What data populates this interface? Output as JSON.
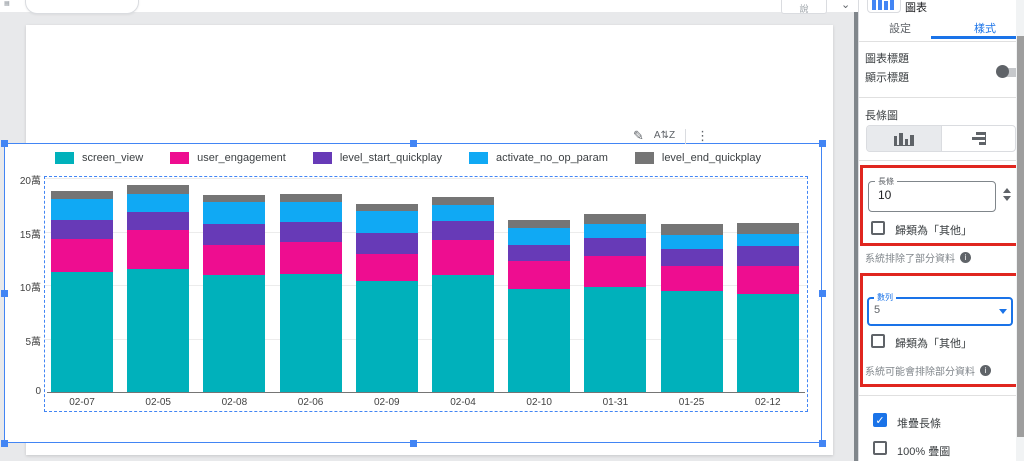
{
  "top_bar": {
    "partial_button_label": "說",
    "caret": "⌄"
  },
  "chart_toolbar": {
    "edit_icon": "✎",
    "sort_icon": "A⇅Z",
    "menu_icon": "⋮"
  },
  "chart_data": {
    "type": "bar",
    "stacked": true,
    "title": "",
    "legend_position": "top",
    "categories": [
      "02-07",
      "02-05",
      "02-08",
      "02-06",
      "02-09",
      "02-04",
      "02-10",
      "01-31",
      "01-25",
      "02-12"
    ],
    "series": [
      {
        "name": "screen_view",
        "color": "#00b1bb",
        "values": [
          112000,
          115000,
          109000,
          110000,
          104000,
          109000,
          96000,
          98000,
          94000,
          92000
        ]
      },
      {
        "name": "user_engagement",
        "color": "#ee0d90",
        "values": [
          31000,
          36000,
          28000,
          30000,
          25000,
          33000,
          26000,
          29000,
          24000,
          26000
        ]
      },
      {
        "name": "level_start_quickplay",
        "color": "#673ab7",
        "values": [
          18000,
          17000,
          20000,
          19000,
          20000,
          18000,
          15000,
          17000,
          16000,
          18000
        ]
      },
      {
        "name": "activate_no_op_param",
        "color": "#10a9f4",
        "values": [
          19000,
          17000,
          21000,
          19000,
          20000,
          15000,
          16000,
          13000,
          13000,
          12000
        ]
      },
      {
        "name": "level_end_quickplay",
        "color": "#757575",
        "values": [
          8000,
          8000,
          6000,
          7000,
          7000,
          7000,
          8000,
          9000,
          10000,
          10000
        ]
      }
    ],
    "ylim": [
      0,
      200000
    ],
    "y_ticks": [
      "0",
      "5萬",
      "10萬",
      "15萬",
      "20萬"
    ],
    "grid": true
  },
  "panel": {
    "header": {
      "title": "圖表"
    },
    "tabs": {
      "settings": "設定",
      "style": "樣式"
    },
    "chart_title_section": {
      "label": "圖表標題",
      "show_title_label": "顯示標題",
      "toggle_state": "off"
    },
    "bar_chart_section": {
      "label": "長條圖"
    },
    "bars_field": {
      "label": "長條",
      "value": "10"
    },
    "bars_group_other_label": "歸類為「其他」",
    "bars_excluded_note": "系統排除了部分資料",
    "series_field": {
      "label": "數列",
      "value": "5"
    },
    "series_group_other_label": "歸類為「其他」",
    "series_excluded_note": "系統可能會排除部分資料",
    "stacked_bars_label": "堆疊長條",
    "pct_stack_label": "100% 疊圖"
  },
  "colors": {
    "accent_blue": "#1a73e8",
    "selection_blue": "#4285f4",
    "annotation_red": "#e0261f",
    "workspace_gray": "#e8e9eb"
  }
}
